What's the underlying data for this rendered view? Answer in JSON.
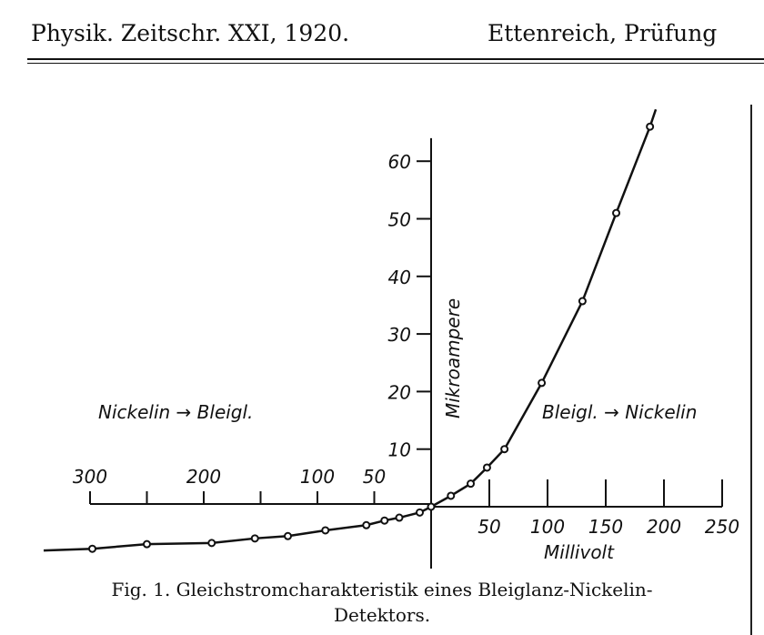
{
  "header": {
    "left": "Physik. Zeitschr. XXI, 1920.",
    "right": "Ettenreich, Prüfung"
  },
  "caption": {
    "line1": "Fig. 1.  Gleichstromcharakteristik eines Bleiglanz-Nickelin-",
    "line2": "Detektors."
  },
  "chart_data": {
    "type": "line",
    "xlabel": "Millivolt",
    "ylabel": "Mikroampere",
    "x_ticks_positive": [
      50,
      100,
      150,
      200,
      250
    ],
    "x_ticks_negative": [
      300,
      250,
      200,
      150,
      100,
      50
    ],
    "x_tick_labels_negative": [
      "300",
      "200",
      "100",
      "50"
    ],
    "y_ticks": [
      10,
      20,
      30,
      40,
      50,
      60
    ],
    "xlim": [
      -300,
      250
    ],
    "ylim": [
      -8,
      66
    ],
    "annotations": {
      "left": "Nickelin → Bleigl.",
      "right": "Bleigl. → Nickelin"
    },
    "series": [
      {
        "points": [
          [
            -298,
            -7.3
          ],
          [
            -250,
            -6.5
          ],
          [
            -193,
            -6.3
          ],
          [
            -155,
            -5.5
          ],
          [
            -126,
            -5.1
          ],
          [
            -93,
            -4.1
          ],
          [
            -57,
            -3.2
          ],
          [
            -41,
            -2.4
          ],
          [
            -28,
            -1.9
          ],
          [
            -10,
            -1.0
          ],
          [
            0,
            0
          ],
          [
            17,
            1.9
          ],
          [
            34,
            4.0
          ],
          [
            48,
            6.8
          ],
          [
            63,
            10
          ],
          [
            95,
            21.5
          ],
          [
            130,
            35.7
          ],
          [
            159,
            51
          ],
          [
            188,
            66
          ]
        ]
      }
    ],
    "grid": false
  }
}
